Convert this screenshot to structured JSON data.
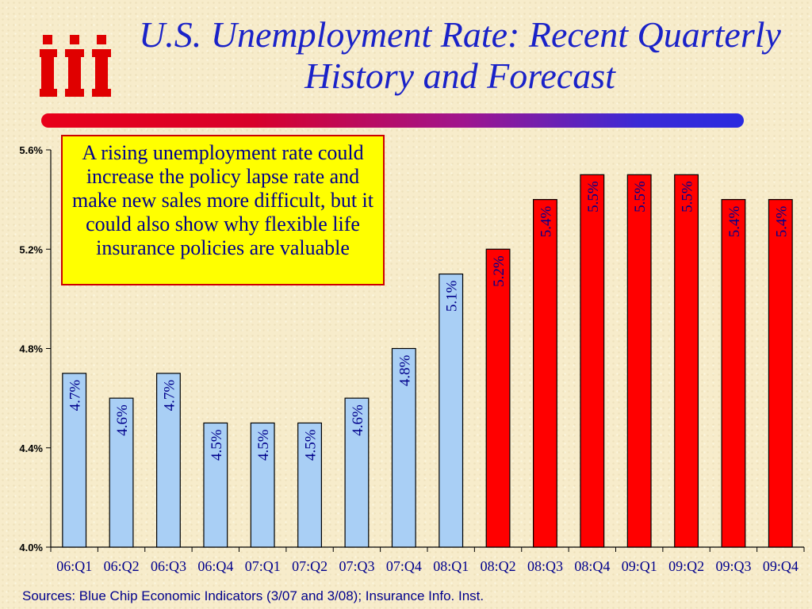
{
  "title": "U.S. Unemployment Rate: Recent Quarterly History and Forecast",
  "callout": "A rising unemployment rate could increase the policy lapse rate and make new sales more difficult, but it could also show why flexible life insurance policies are valuable",
  "source": "Sources: Blue Chip Economic Indicators (3/07 and 3/08); Insurance Info. Inst.",
  "logo_text": "iii",
  "colors": {
    "history_bar": "#a9cff5",
    "forecast_bar": "#ff0000",
    "title": "#1a22c8",
    "label": "#00008c"
  },
  "chart_data": {
    "type": "bar",
    "title": "U.S. Unemployment Rate: Recent Quarterly History and Forecast",
    "xlabel": "",
    "ylabel": "",
    "ylim": [
      4.0,
      5.6
    ],
    "yticks": [
      "4.0%",
      "4.4%",
      "4.8%",
      "5.2%",
      "5.6%"
    ],
    "ytick_values": [
      4.0,
      4.4,
      4.8,
      5.2,
      5.6
    ],
    "grid": false,
    "categories": [
      "06:Q1",
      "06:Q2",
      "06:Q3",
      "06:Q4",
      "07:Q1",
      "07:Q2",
      "07:Q3",
      "07:Q4",
      "08:Q1",
      "08:Q2",
      "08:Q3",
      "08:Q4",
      "09:Q1",
      "09:Q2",
      "09:Q3",
      "09:Q4"
    ],
    "values": [
      4.7,
      4.6,
      4.7,
      4.5,
      4.5,
      4.5,
      4.6,
      4.8,
      5.1,
      5.2,
      5.4,
      5.5,
      5.5,
      5.5,
      5.4,
      5.4
    ],
    "data_labels": [
      "4.7%",
      "4.6%",
      "4.7%",
      "4.5%",
      "4.5%",
      "4.5%",
      "4.6%",
      "4.8%",
      "5.1%",
      "5.2%",
      "5.4%",
      "5.5%",
      "5.5%",
      "5.5%",
      "5.4%",
      "5.4%"
    ],
    "bar_kind": [
      "history",
      "history",
      "history",
      "history",
      "history",
      "history",
      "history",
      "history",
      "history",
      "forecast",
      "forecast",
      "forecast",
      "forecast",
      "forecast",
      "forecast",
      "forecast"
    ]
  }
}
